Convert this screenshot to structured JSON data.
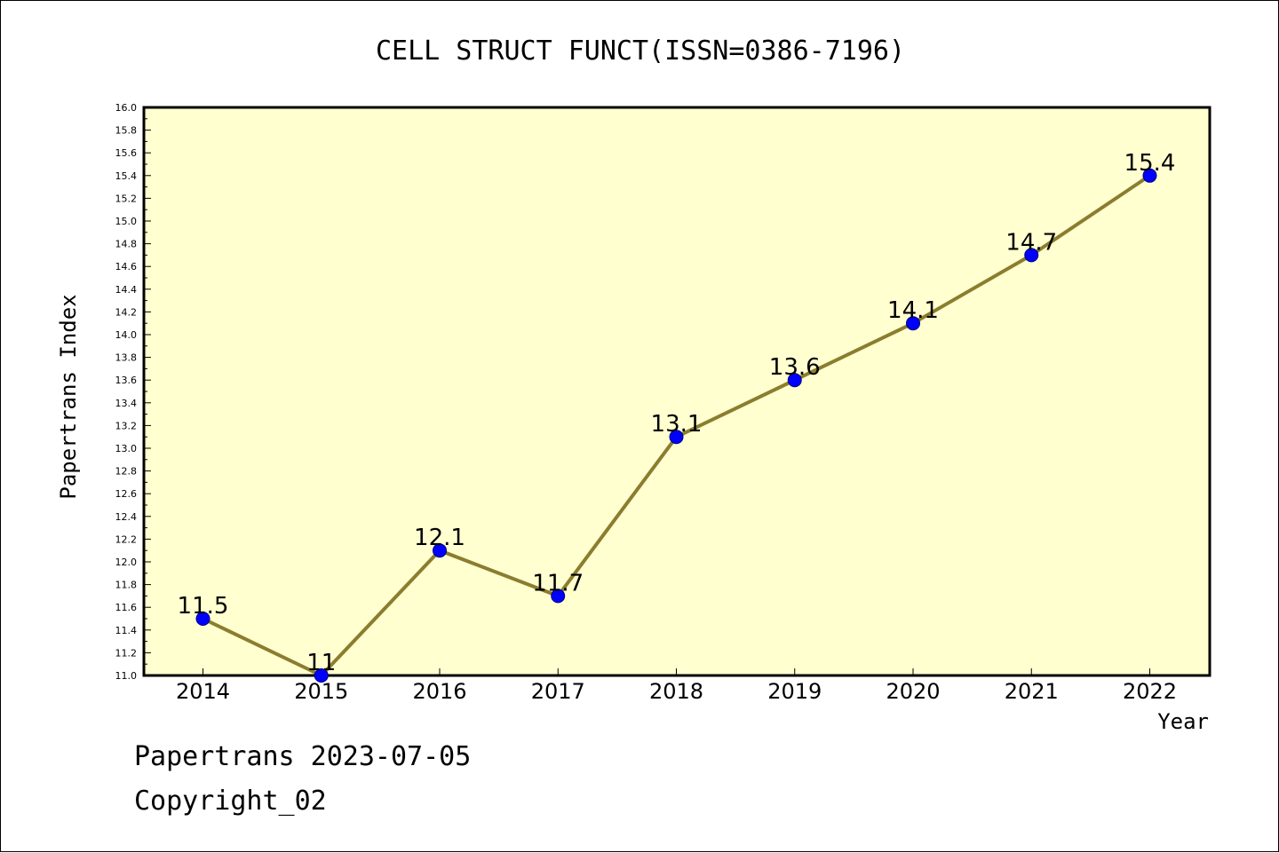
{
  "footer": {
    "line1": "Papertrans 2023-07-05",
    "line2": "Copyright_02"
  },
  "colors": {
    "plot_background": "#FFFFD0",
    "line": "#8B7D2E",
    "marker": "#0000FF",
    "marker_edge": "#000080"
  },
  "chart_data": {
    "type": "line",
    "title": "CELL STRUCT FUNCT(ISSN=0386-7196)",
    "xlabel": "Year",
    "ylabel": "Papertrans Index",
    "categories": [
      "2014",
      "2015",
      "2016",
      "2017",
      "2018",
      "2019",
      "2020",
      "2021",
      "2022"
    ],
    "series": [
      {
        "values": [
          11.5,
          11.0,
          12.1,
          11.7,
          13.1,
          13.6,
          14.1,
          14.7,
          15.4
        ],
        "labels": [
          "11.5",
          "11",
          "12.1",
          "11.7",
          "13.1",
          "13.6",
          "14.1",
          "14.7",
          "15.4"
        ]
      }
    ],
    "ylim": [
      11.0,
      16.0
    ],
    "yticks": [
      "11.0",
      "11.2",
      "11.4",
      "11.6",
      "11.8",
      "12.0",
      "12.2",
      "12.4",
      "12.6",
      "12.8",
      "13.0",
      "13.2",
      "13.4",
      "13.6",
      "13.8",
      "14.0",
      "14.2",
      "14.4",
      "14.6",
      "14.8",
      "15.0",
      "15.2",
      "15.4",
      "15.6",
      "15.8",
      "16.0"
    ],
    "grid": false,
    "legend": "none"
  }
}
